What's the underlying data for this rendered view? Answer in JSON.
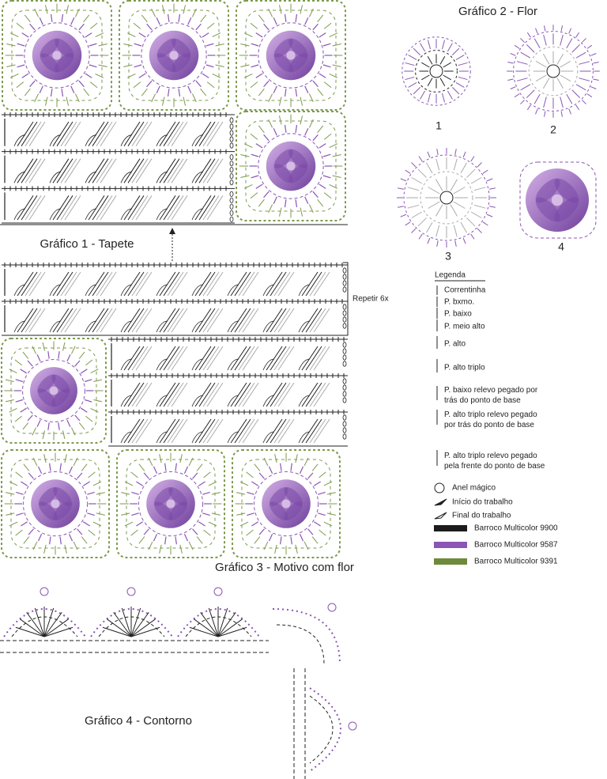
{
  "chart1": {
    "title": "Gráfico 1 - Tapete"
  },
  "chart2": {
    "title": "Gráfico 2 - Flor",
    "steps": [
      "1",
      "2",
      "3",
      "4"
    ]
  },
  "chart3": {
    "title": "Gráfico 3 - Motivo com flor",
    "repeat": "Repetir 6x"
  },
  "chart4": {
    "title": "Gráfico 4 - Contorno"
  },
  "legend": {
    "title": "Legenda",
    "stitches": [
      [
        "Correntinha"
      ],
      [
        "P. bxmo."
      ],
      [
        "P. baixo"
      ],
      [
        "P. meio alto"
      ],
      [
        "P. alto"
      ],
      [
        "P. alto triplo"
      ],
      [
        "P. baixo relevo pegado por",
        "trás do ponto de base"
      ],
      [
        "P. alto triplo relevo pegado",
        "por trás do ponto de base"
      ],
      [
        "P. alto triplo relevo pegado",
        "pela frente do ponto de base"
      ]
    ],
    "markers": [
      "Anel mágico",
      "Início do trabalho",
      "Final do trabalho"
    ],
    "yarns": [
      {
        "name": "Barroco Multicolor 9900",
        "color": "#1c1c1c"
      },
      {
        "name": "Barroco Multicolor 9587",
        "color": "#8a55b5"
      },
      {
        "name": "Barroco Multicolor 9391",
        "color": "#6d8a3c"
      }
    ]
  }
}
